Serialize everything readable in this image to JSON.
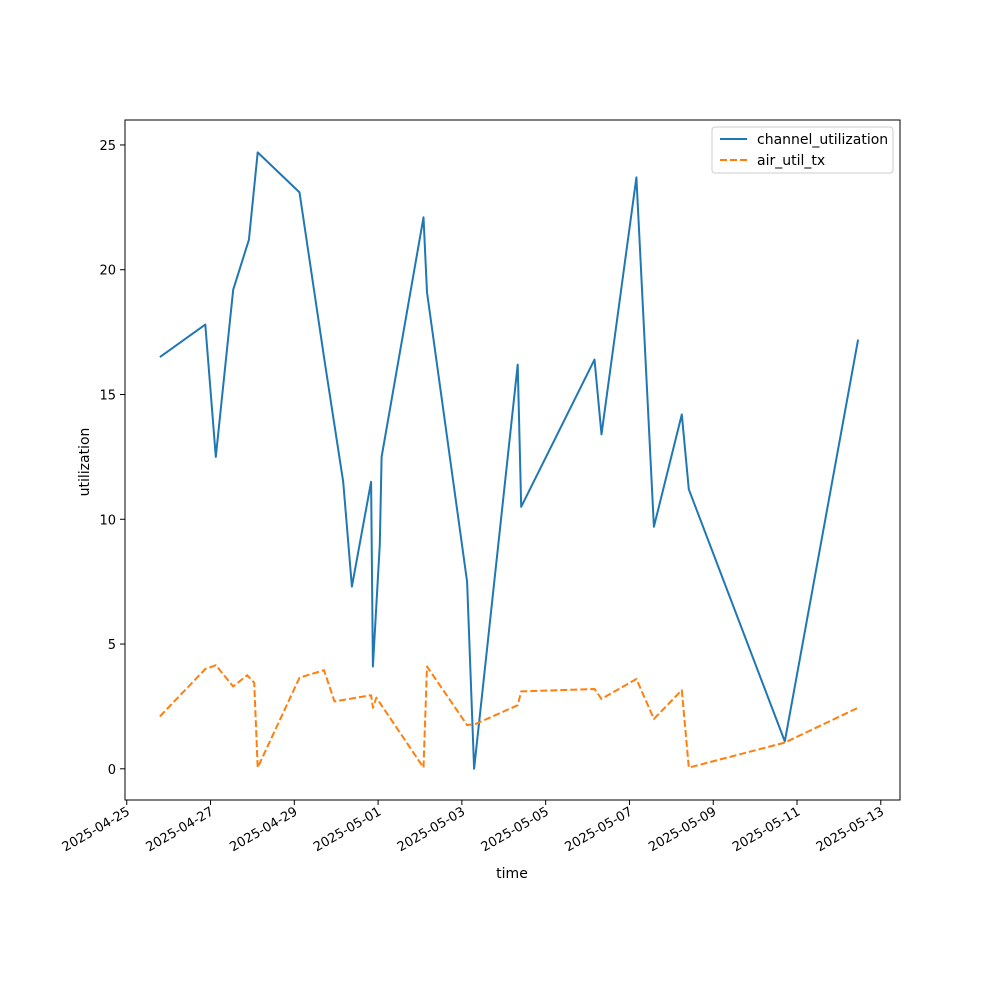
{
  "chart_data": {
    "type": "line",
    "title": "",
    "xlabel": "time",
    "ylabel": "utilization",
    "x_ticks": [
      "2025-04-25",
      "2025-04-27",
      "2025-04-29",
      "2025-05-01",
      "2025-05-03",
      "2025-05-05",
      "2025-05-07",
      "2025-05-09",
      "2025-05-11",
      "2025-05-13"
    ],
    "y_ticks": [
      "0",
      "5",
      "10",
      "15",
      "20",
      "25"
    ],
    "xlim": [
      "2025-04-24 23:00",
      "2025-05-13 11:00"
    ],
    "ylim": [
      -1.25,
      26.0
    ],
    "grid": false,
    "legend_position": "top-right",
    "series": [
      {
        "name": "channel_utilization",
        "color": "#1f77b4",
        "dash": "solid",
        "points": [
          {
            "x": "2025-04-25 19:00",
            "y": 16.5
          },
          {
            "x": "2025-04-26 21:00",
            "y": 17.8
          },
          {
            "x": "2025-04-27 03:00",
            "y": 12.5
          },
          {
            "x": "2025-04-27 13:00",
            "y": 19.2
          },
          {
            "x": "2025-04-27 22:00",
            "y": 21.2
          },
          {
            "x": "2025-04-28 03:00",
            "y": 24.7
          },
          {
            "x": "2025-04-29 03:00",
            "y": 23.1
          },
          {
            "x": "2025-04-29 17:00",
            "y": 16.5
          },
          {
            "x": "2025-04-30 04:00",
            "y": 11.5
          },
          {
            "x": "2025-04-30 09:00",
            "y": 7.3
          },
          {
            "x": "2025-04-30 20:00",
            "y": 11.5
          },
          {
            "x": "2025-04-30 21:00",
            "y": 4.1
          },
          {
            "x": "2025-05-01 01:00",
            "y": 9.0
          },
          {
            "x": "2025-05-01 02:00",
            "y": 12.5
          },
          {
            "x": "2025-05-02 02:00",
            "y": 22.1
          },
          {
            "x": "2025-05-02 04:00",
            "y": 19.1
          },
          {
            "x": "2025-05-03 03:00",
            "y": 7.5
          },
          {
            "x": "2025-05-03 07:00",
            "y": 0.0
          },
          {
            "x": "2025-05-04 08:00",
            "y": 16.2
          },
          {
            "x": "2025-05-04 10:00",
            "y": 10.5
          },
          {
            "x": "2025-05-06 04:00",
            "y": 16.4
          },
          {
            "x": "2025-05-06 08:00",
            "y": 13.4
          },
          {
            "x": "2025-05-07 04:00",
            "y": 23.7
          },
          {
            "x": "2025-05-07 14:00",
            "y": 9.7
          },
          {
            "x": "2025-05-08 06:00",
            "y": 14.2
          },
          {
            "x": "2025-05-08 10:00",
            "y": 11.2
          },
          {
            "x": "2025-05-10 17:00",
            "y": 1.1
          },
          {
            "x": "2025-05-12 11:00",
            "y": 17.2
          }
        ]
      },
      {
        "name": "air_util_tx",
        "color": "#ff7f0e",
        "dash": "dashed",
        "points": [
          {
            "x": "2025-04-25 19:00",
            "y": 2.1
          },
          {
            "x": "2025-04-26 21:00",
            "y": 4.0
          },
          {
            "x": "2025-04-27 03:00",
            "y": 4.15
          },
          {
            "x": "2025-04-27 13:00",
            "y": 3.3
          },
          {
            "x": "2025-04-27 21:00",
            "y": 3.75
          },
          {
            "x": "2025-04-28 01:00",
            "y": 3.45
          },
          {
            "x": "2025-04-28 03:00",
            "y": 0.05
          },
          {
            "x": "2025-04-29 03:00",
            "y": 3.65
          },
          {
            "x": "2025-04-29 17:00",
            "y": 3.95
          },
          {
            "x": "2025-04-29 23:00",
            "y": 2.7
          },
          {
            "x": "2025-04-30 20:00",
            "y": 2.95
          },
          {
            "x": "2025-04-30 21:00",
            "y": 2.45
          },
          {
            "x": "2025-04-30 23:00",
            "y": 2.85
          },
          {
            "x": "2025-05-02 02:00",
            "y": 0.05
          },
          {
            "x": "2025-05-02 04:00",
            "y": 4.1
          },
          {
            "x": "2025-05-03 03:00",
            "y": 1.75
          },
          {
            "x": "2025-05-03 08:00",
            "y": 1.8
          },
          {
            "x": "2025-05-04 08:00",
            "y": 2.55
          },
          {
            "x": "2025-05-04 10:00",
            "y": 3.1
          },
          {
            "x": "2025-05-06 04:00",
            "y": 3.2
          },
          {
            "x": "2025-05-06 08:00",
            "y": 2.8
          },
          {
            "x": "2025-05-07 04:00",
            "y": 3.6
          },
          {
            "x": "2025-05-07 14:00",
            "y": 2.0
          },
          {
            "x": "2025-05-08 06:00",
            "y": 3.15
          },
          {
            "x": "2025-05-08 10:00",
            "y": 0.05
          },
          {
            "x": "2025-05-10 17:00",
            "y": 1.05
          },
          {
            "x": "2025-05-12 11:00",
            "y": 2.45
          }
        ]
      }
    ]
  }
}
